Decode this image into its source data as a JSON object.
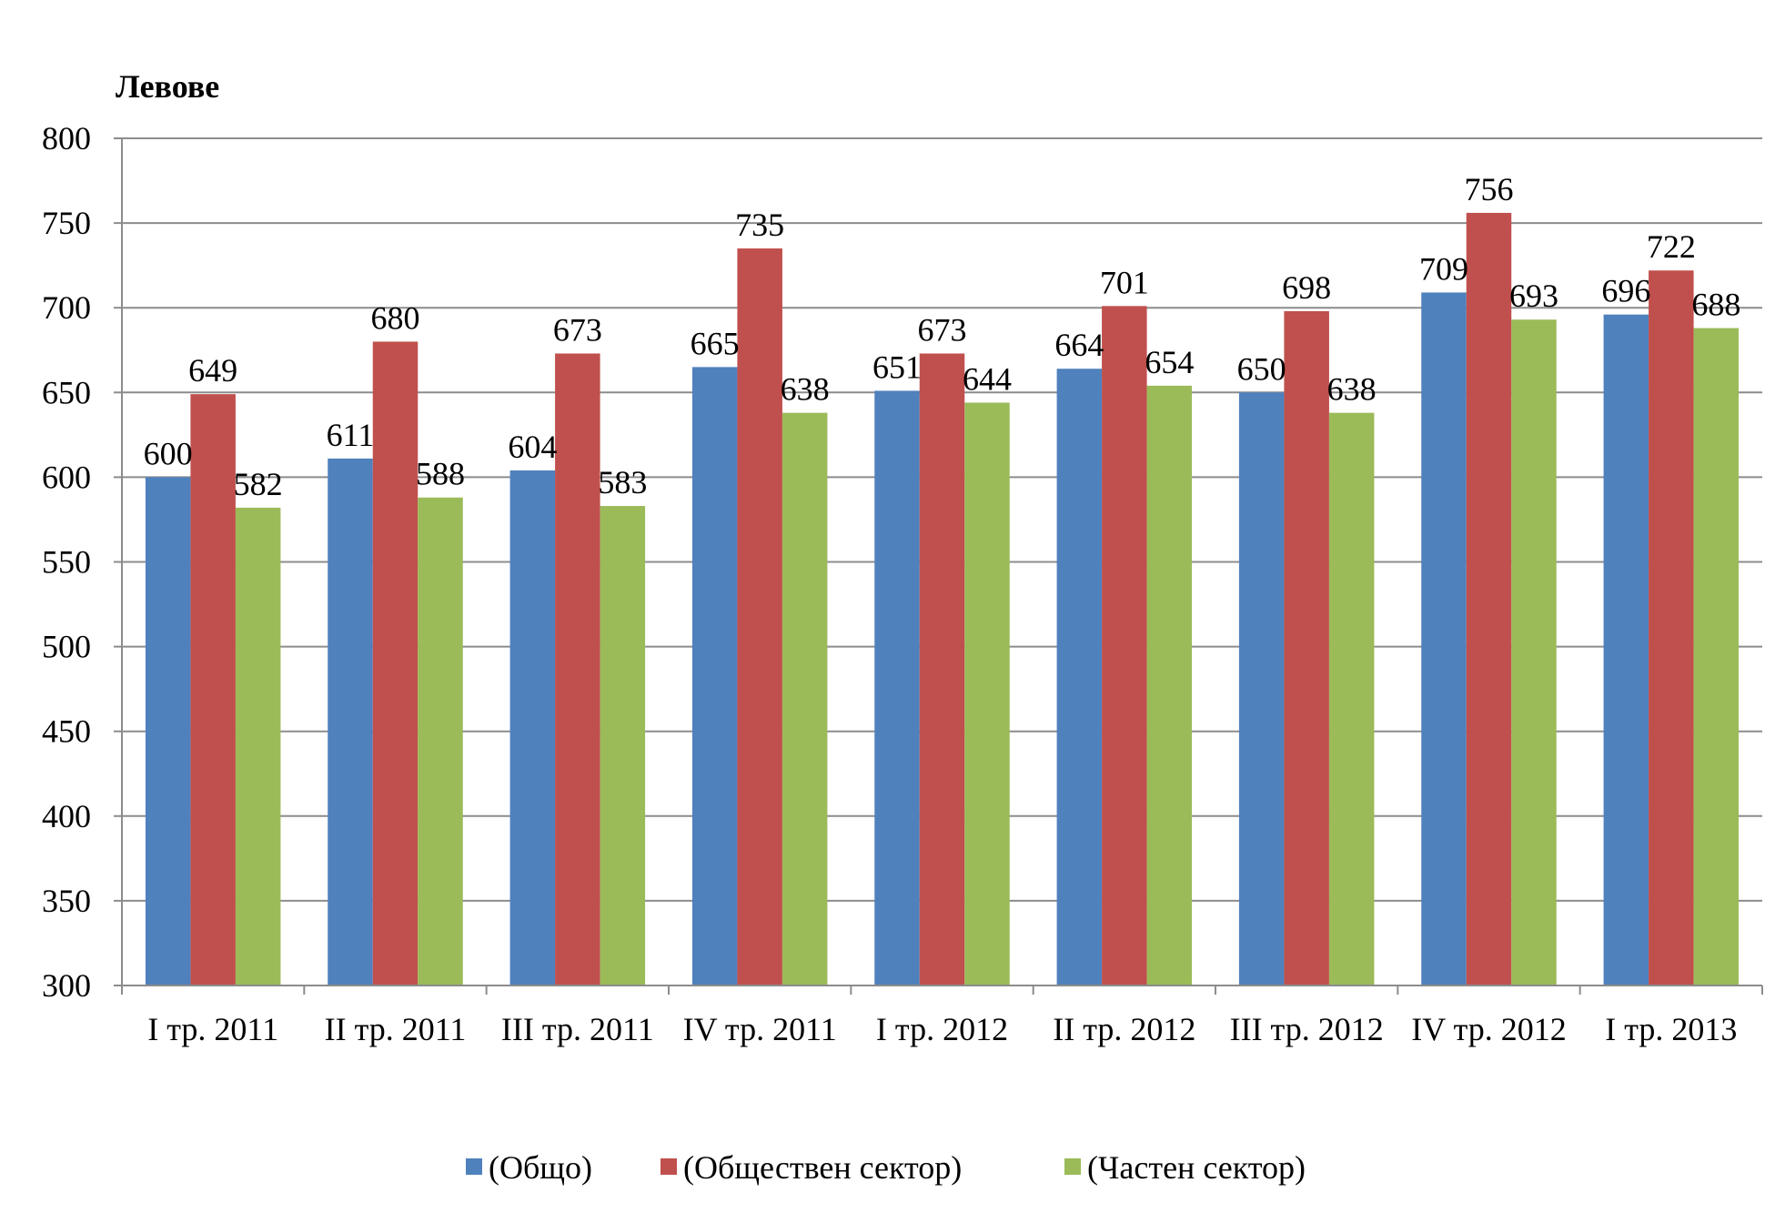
{
  "chart_data": {
    "type": "bar",
    "unit_label": "Левове",
    "categories": [
      "I тр. 2011",
      "II тр. 2011",
      "III тр. 2011",
      "IV тр. 2011",
      "I тр. 2012",
      "II тр. 2012",
      "III тр. 2012",
      "IV тр. 2012",
      "I тр. 2013"
    ],
    "series": [
      {
        "name": "(Общо)",
        "color": "#4F81BD",
        "values": [
          600,
          611,
          604,
          665,
          651,
          664,
          650,
          709,
          696
        ]
      },
      {
        "name": "(Обществен сектор)",
        "color": "#C0504D",
        "values": [
          649,
          680,
          673,
          735,
          673,
          701,
          698,
          756,
          722
        ]
      },
      {
        "name": "(Частен сектор)",
        "color": "#9BBB59",
        "values": [
          582,
          588,
          583,
          638,
          644,
          654,
          638,
          693,
          688
        ]
      }
    ],
    "ylim": [
      300,
      800
    ],
    "yticks": [
      300,
      350,
      400,
      450,
      500,
      550,
      600,
      650,
      700,
      750,
      800
    ],
    "grid": true,
    "legend_position": "bottom",
    "data_labels": true
  }
}
